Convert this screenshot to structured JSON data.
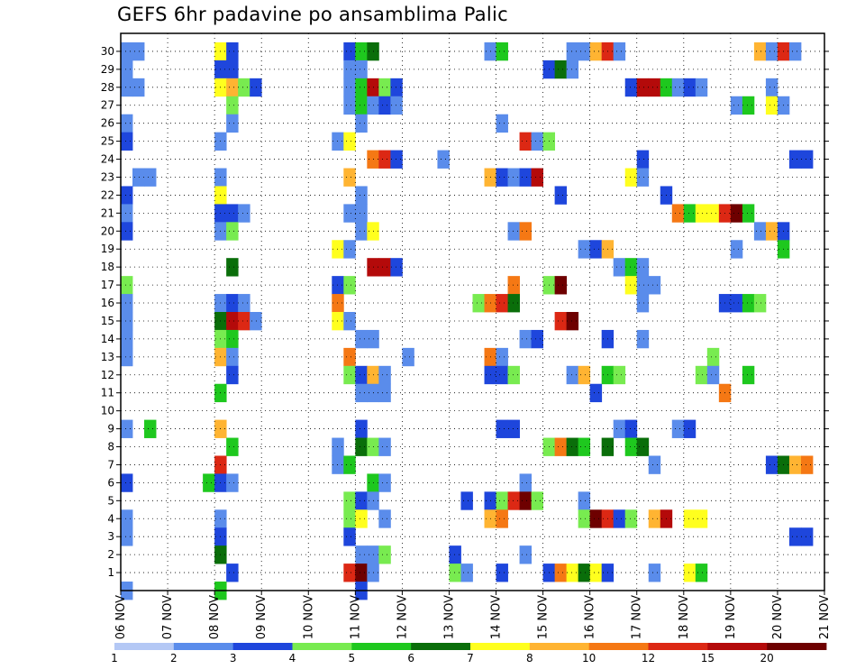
{
  "chart_data": {
    "type": "heatmap",
    "title": "GEFS 6hr padavine po ansamblima Palic",
    "xlabel": "",
    "ylabel": "",
    "y_range": [
      0,
      31
    ],
    "x_range": [
      "06 NOV",
      "21 NOV"
    ],
    "grid": true,
    "x_ticks": [
      "06 NOV",
      "07 NOV",
      "08 NOV",
      "09 NOV",
      "10 NOV",
      "11 NOV",
      "12 NOV",
      "13 NOV",
      "14 NOV",
      "15 NOV",
      "16 NOV",
      "17 NOV",
      "18 NOV",
      "19 NOV",
      "20 NOV",
      "21 NOV"
    ],
    "y_ticks": [
      1,
      2,
      3,
      4,
      5,
      6,
      7,
      8,
      9,
      10,
      11,
      12,
      13,
      14,
      15,
      16,
      17,
      18,
      19,
      20,
      21,
      22,
      23,
      24,
      25,
      26,
      27,
      28,
      29,
      30
    ],
    "colorbar": {
      "labels": [
        "1",
        "2",
        "3",
        "4",
        "5",
        "6",
        "7",
        "8",
        "10",
        "12",
        "15",
        "20"
      ],
      "colors": [
        "#b4c8f5",
        "#5a8ceb",
        "#1e46dc",
        "#78eb50",
        "#1ec81e",
        "#0a6e0a",
        "#ffff1e",
        "#ffb432",
        "#f57814",
        "#dc2814",
        "#b40a0a",
        "#6e0000"
      ]
    },
    "series_cells_note_x_is_step_index_6h_from_06_NOV_00Z": "",
    "cells": [
      [
        0,
        30,
        1
      ],
      [
        1,
        30,
        1
      ],
      [
        8,
        30,
        6
      ],
      [
        9,
        30,
        2
      ],
      [
        19,
        30,
        2
      ],
      [
        20,
        30,
        4
      ],
      [
        21,
        30,
        5
      ],
      [
        31,
        30,
        1
      ],
      [
        32,
        30,
        4
      ],
      [
        38,
        30,
        1
      ],
      [
        39,
        30,
        1
      ],
      [
        40,
        30,
        7
      ],
      [
        41,
        30,
        9
      ],
      [
        42,
        30,
        1
      ],
      [
        54,
        30,
        7
      ],
      [
        55,
        30,
        1
      ],
      [
        56,
        30,
        9
      ],
      [
        57,
        30,
        1
      ],
      [
        0,
        29,
        1
      ],
      [
        8,
        29,
        2
      ],
      [
        9,
        29,
        2
      ],
      [
        19,
        29,
        1
      ],
      [
        20,
        29,
        1
      ],
      [
        36,
        29,
        2
      ],
      [
        37,
        29,
        5
      ],
      [
        38,
        29,
        1
      ],
      [
        0,
        28,
        1
      ],
      [
        1,
        28,
        1
      ],
      [
        8,
        28,
        6
      ],
      [
        9,
        28,
        7
      ],
      [
        10,
        28,
        3
      ],
      [
        11,
        28,
        2
      ],
      [
        19,
        28,
        1
      ],
      [
        20,
        28,
        4
      ],
      [
        21,
        28,
        10
      ],
      [
        22,
        28,
        3
      ],
      [
        23,
        28,
        2
      ],
      [
        43,
        28,
        2
      ],
      [
        44,
        28,
        10
      ],
      [
        45,
        28,
        10
      ],
      [
        46,
        28,
        4
      ],
      [
        47,
        28,
        1
      ],
      [
        48,
        28,
        2
      ],
      [
        49,
        28,
        1
      ],
      [
        55,
        28,
        1
      ],
      [
        9,
        27,
        3
      ],
      [
        19,
        27,
        1
      ],
      [
        20,
        27,
        4
      ],
      [
        21,
        27,
        1
      ],
      [
        22,
        27,
        2
      ],
      [
        23,
        27,
        1
      ],
      [
        52,
        27,
        1
      ],
      [
        53,
        27,
        4
      ],
      [
        55,
        27,
        6
      ],
      [
        56,
        27,
        1
      ],
      [
        0,
        26,
        1
      ],
      [
        9,
        26,
        1
      ],
      [
        20,
        26,
        1
      ],
      [
        32,
        26,
        1
      ],
      [
        0,
        25,
        2
      ],
      [
        8,
        25,
        1
      ],
      [
        18,
        25,
        1
      ],
      [
        19,
        25,
        6
      ],
      [
        34,
        25,
        9
      ],
      [
        35,
        25,
        1
      ],
      [
        36,
        25,
        3
      ],
      [
        21,
        24,
        8
      ],
      [
        22,
        24,
        9
      ],
      [
        23,
        24,
        2
      ],
      [
        27,
        24,
        1
      ],
      [
        44,
        24,
        2
      ],
      [
        57,
        24,
        2
      ],
      [
        58,
        24,
        2
      ],
      [
        1,
        23,
        1
      ],
      [
        2,
        23,
        1
      ],
      [
        8,
        23,
        1
      ],
      [
        19,
        23,
        7
      ],
      [
        31,
        23,
        7
      ],
      [
        32,
        23,
        2
      ],
      [
        33,
        23,
        1
      ],
      [
        34,
        23,
        2
      ],
      [
        35,
        23,
        10
      ],
      [
        43,
        23,
        6
      ],
      [
        44,
        23,
        1
      ],
      [
        0,
        22,
        2
      ],
      [
        8,
        22,
        6
      ],
      [
        20,
        22,
        1
      ],
      [
        37,
        22,
        2
      ],
      [
        46,
        22,
        2
      ],
      [
        0,
        21,
        1
      ],
      [
        8,
        21,
        2
      ],
      [
        9,
        21,
        2
      ],
      [
        10,
        21,
        1
      ],
      [
        19,
        21,
        1
      ],
      [
        20,
        21,
        1
      ],
      [
        47,
        21,
        8
      ],
      [
        48,
        21,
        4
      ],
      [
        49,
        21,
        6
      ],
      [
        50,
        21,
        6
      ],
      [
        51,
        21,
        9
      ],
      [
        52,
        21,
        11
      ],
      [
        53,
        21,
        4
      ],
      [
        0,
        20,
        2
      ],
      [
        8,
        20,
        1
      ],
      [
        9,
        20,
        3
      ],
      [
        20,
        20,
        1
      ],
      [
        21,
        20,
        6
      ],
      [
        33,
        20,
        1
      ],
      [
        34,
        20,
        8
      ],
      [
        54,
        20,
        1
      ],
      [
        55,
        20,
        7
      ],
      [
        56,
        20,
        2
      ],
      [
        18,
        19,
        6
      ],
      [
        19,
        19,
        1
      ],
      [
        39,
        19,
        1
      ],
      [
        40,
        19,
        2
      ],
      [
        41,
        19,
        7
      ],
      [
        52,
        19,
        1
      ],
      [
        56,
        19,
        4
      ],
      [
        9,
        18,
        5
      ],
      [
        21,
        18,
        10
      ],
      [
        22,
        18,
        10
      ],
      [
        23,
        18,
        2
      ],
      [
        42,
        18,
        1
      ],
      [
        43,
        18,
        4
      ],
      [
        44,
        18,
        1
      ],
      [
        0,
        17,
        3
      ],
      [
        18,
        17,
        2
      ],
      [
        19,
        17,
        3
      ],
      [
        33,
        17,
        8
      ],
      [
        36,
        17,
        3
      ],
      [
        37,
        17,
        11
      ],
      [
        43,
        17,
        6
      ],
      [
        44,
        17,
        1
      ],
      [
        45,
        17,
        1
      ],
      [
        0,
        16,
        1
      ],
      [
        8,
        16,
        1
      ],
      [
        9,
        16,
        2
      ],
      [
        10,
        16,
        1
      ],
      [
        18,
        16,
        8
      ],
      [
        30,
        16,
        3
      ],
      [
        31,
        16,
        8
      ],
      [
        32,
        16,
        9
      ],
      [
        33,
        16,
        5
      ],
      [
        44,
        16,
        1
      ],
      [
        51,
        16,
        2
      ],
      [
        52,
        16,
        2
      ],
      [
        53,
        16,
        4
      ],
      [
        54,
        16,
        3
      ],
      [
        0,
        15,
        1
      ],
      [
        8,
        15,
        5
      ],
      [
        9,
        15,
        10
      ],
      [
        10,
        15,
        9
      ],
      [
        11,
        15,
        1
      ],
      [
        18,
        15,
        6
      ],
      [
        19,
        15,
        1
      ],
      [
        37,
        15,
        9
      ],
      [
        38,
        15,
        11
      ],
      [
        0,
        14,
        1
      ],
      [
        8,
        14,
        3
      ],
      [
        9,
        14,
        4
      ],
      [
        20,
        14,
        1
      ],
      [
        21,
        14,
        1
      ],
      [
        34,
        14,
        1
      ],
      [
        35,
        14,
        2
      ],
      [
        41,
        14,
        2
      ],
      [
        44,
        14,
        1
      ],
      [
        0,
        13,
        1
      ],
      [
        8,
        13,
        7
      ],
      [
        9,
        13,
        1
      ],
      [
        19,
        13,
        8
      ],
      [
        24,
        13,
        1
      ],
      [
        31,
        13,
        8
      ],
      [
        32,
        13,
        1
      ],
      [
        50,
        13,
        3
      ],
      [
        9,
        12,
        2
      ],
      [
        19,
        12,
        3
      ],
      [
        20,
        12,
        2
      ],
      [
        21,
        12,
        7
      ],
      [
        22,
        12,
        1
      ],
      [
        31,
        12,
        2
      ],
      [
        32,
        12,
        2
      ],
      [
        33,
        12,
        3
      ],
      [
        38,
        12,
        1
      ],
      [
        39,
        12,
        7
      ],
      [
        41,
        12,
        4
      ],
      [
        42,
        12,
        3
      ],
      [
        49,
        12,
        3
      ],
      [
        50,
        12,
        1
      ],
      [
        53,
        12,
        4
      ],
      [
        8,
        11,
        4
      ],
      [
        20,
        11,
        1
      ],
      [
        21,
        11,
        1
      ],
      [
        22,
        11,
        1
      ],
      [
        40,
        11,
        2
      ],
      [
        51,
        11,
        8
      ],
      [
        0,
        9,
        1
      ],
      [
        2,
        9,
        4
      ],
      [
        8,
        9,
        7
      ],
      [
        20,
        9,
        2
      ],
      [
        32,
        9,
        2
      ],
      [
        33,
        9,
        2
      ],
      [
        42,
        9,
        1
      ],
      [
        43,
        9,
        2
      ],
      [
        47,
        9,
        1
      ],
      [
        48,
        9,
        2
      ],
      [
        9,
        8,
        4
      ],
      [
        18,
        8,
        1
      ],
      [
        20,
        8,
        5
      ],
      [
        21,
        8,
        3
      ],
      [
        22,
        8,
        1
      ],
      [
        36,
        8,
        3
      ],
      [
        37,
        8,
        8
      ],
      [
        38,
        8,
        5
      ],
      [
        39,
        8,
        4
      ],
      [
        41,
        8,
        5
      ],
      [
        43,
        8,
        4
      ],
      [
        44,
        8,
        5
      ],
      [
        8,
        7,
        9
      ],
      [
        18,
        7,
        1
      ],
      [
        19,
        7,
        4
      ],
      [
        45,
        7,
        1
      ],
      [
        55,
        7,
        2
      ],
      [
        56,
        7,
        5
      ],
      [
        57,
        7,
        7
      ],
      [
        58,
        7,
        8
      ],
      [
        0,
        6,
        2
      ],
      [
        7,
        6,
        4
      ],
      [
        8,
        6,
        2
      ],
      [
        9,
        6,
        1
      ],
      [
        21,
        6,
        4
      ],
      [
        22,
        6,
        1
      ],
      [
        34,
        6,
        1
      ],
      [
        19,
        5,
        3
      ],
      [
        20,
        5,
        2
      ],
      [
        21,
        5,
        1
      ],
      [
        29,
        5,
        2
      ],
      [
        31,
        5,
        2
      ],
      [
        32,
        5,
        3
      ],
      [
        33,
        5,
        9
      ],
      [
        34,
        5,
        11
      ],
      [
        35,
        5,
        3
      ],
      [
        39,
        5,
        1
      ],
      [
        0,
        4,
        1
      ],
      [
        8,
        4,
        1
      ],
      [
        19,
        4,
        3
      ],
      [
        20,
        4,
        6
      ],
      [
        22,
        4,
        1
      ],
      [
        31,
        4,
        7
      ],
      [
        32,
        4,
        8
      ],
      [
        39,
        4,
        3
      ],
      [
        40,
        4,
        11
      ],
      [
        41,
        4,
        9
      ],
      [
        42,
        4,
        2
      ],
      [
        43,
        4,
        3
      ],
      [
        45,
        4,
        7
      ],
      [
        46,
        4,
        10
      ],
      [
        48,
        4,
        6
      ],
      [
        49,
        4,
        6
      ],
      [
        0,
        3,
        1
      ],
      [
        8,
        3,
        2
      ],
      [
        19,
        3,
        2
      ],
      [
        57,
        3,
        2
      ],
      [
        58,
        3,
        2
      ],
      [
        8,
        2,
        5
      ],
      [
        20,
        2,
        1
      ],
      [
        21,
        2,
        1
      ],
      [
        22,
        2,
        3
      ],
      [
        28,
        2,
        2
      ],
      [
        34,
        2,
        1
      ],
      [
        9,
        1,
        2
      ],
      [
        19,
        1,
        9
      ],
      [
        20,
        1,
        11
      ],
      [
        21,
        1,
        1
      ],
      [
        28,
        1,
        3
      ],
      [
        29,
        1,
        1
      ],
      [
        32,
        1,
        2
      ],
      [
        36,
        1,
        2
      ],
      [
        37,
        1,
        8
      ],
      [
        38,
        1,
        6
      ],
      [
        39,
        1,
        5
      ],
      [
        40,
        1,
        6
      ],
      [
        41,
        1,
        2
      ],
      [
        45,
        1,
        1
      ],
      [
        48,
        1,
        6
      ],
      [
        49,
        1,
        4
      ],
      [
        0,
        0,
        1
      ],
      [
        8,
        0,
        4
      ],
      [
        20,
        0,
        2
      ]
    ]
  }
}
